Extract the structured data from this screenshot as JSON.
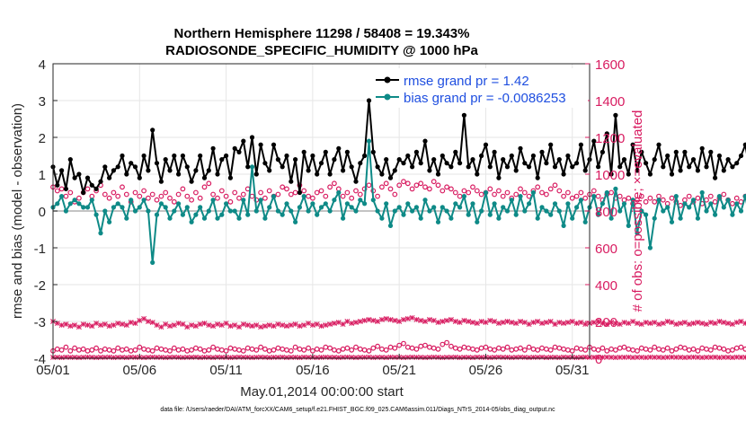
{
  "title_line1": "Northern Hemisphere 11298 / 58408 = 19.343%",
  "title_line2": "RADIOSONDE_SPECIFIC_HUMIDITY @ 1000 hPa",
  "xlabel": "May.01,2014 00:00:00 start",
  "ylabel_left": "rmse and bias (model - observation)",
  "ylabel_right": "# of obs: o=possible; ×=evaluated",
  "footer": "data file: /Users/raeder/DAI/ATM_forcXX/CAM6_setup/f.e21.FHIST_BGC.f09_025.CAM6assim.011/Diags_NTrS_2014-05/obs_diag_output.nc",
  "colors": {
    "rmse": "#000000",
    "bias": "#0e8a87",
    "count": "#d81b60",
    "legend_text": "#1f4fe0",
    "grid": "#e6e6e6",
    "zero_line": "#b0b0b0"
  },
  "chart_data": {
    "type": "line",
    "x_start_day": 1,
    "x_step_days": 0.25,
    "xticks": [
      {
        "day": 1,
        "label": "05/01"
      },
      {
        "day": 6,
        "label": "05/06"
      },
      {
        "day": 11,
        "label": "05/11"
      },
      {
        "day": 16,
        "label": "05/16"
      },
      {
        "day": 21,
        "label": "05/21"
      },
      {
        "day": 26,
        "label": "05/26"
      },
      {
        "day": 31,
        "label": "05/31"
      }
    ],
    "xlim": [
      1,
      32
    ],
    "ylim_left": [
      -4,
      4
    ],
    "yticks_left": [
      -4,
      -3,
      -2,
      -1,
      0,
      1,
      2,
      3,
      4
    ],
    "ylim_right": [
      0,
      1600
    ],
    "yticks_right": [
      0,
      200,
      400,
      600,
      800,
      1000,
      1200,
      1400,
      1600
    ],
    "legend": {
      "placement": "top-right",
      "entries": [
        {
          "label": "rmse grand pr = 1.42",
          "series": "rmse"
        },
        {
          "label": "bias grand pr = -0.0086253",
          "series": "bias"
        }
      ]
    },
    "series": [
      {
        "name": "rmse",
        "axis": "left",
        "values": [
          1.2,
          0.7,
          1.1,
          0.6,
          1.4,
          0.9,
          1.0,
          0.5,
          0.9,
          0.7,
          0.6,
          0.8,
          1.2,
          0.9,
          1.1,
          1.2,
          1.5,
          1.0,
          1.3,
          1.2,
          0.9,
          1.5,
          1.1,
          2.2,
          1.3,
          0.8,
          1.4,
          1.1,
          1.5,
          1.0,
          1.5,
          1.2,
          0.8,
          1.1,
          1.5,
          0.9,
          1.1,
          1.7,
          1.0,
          1.4,
          1.5,
          0.9,
          1.7,
          1.6,
          1.9,
          1.2,
          2.0,
          1.0,
          1.8,
          1.3,
          1.1,
          1.8,
          1.4,
          1.2,
          1.5,
          0.8,
          1.4,
          0.5,
          1.6,
          1.1,
          1.5,
          1.0,
          1.3,
          1.6,
          1.0,
          1.4,
          1.7,
          1.1,
          1.6,
          1.2,
          0.8,
          1.3,
          1.5,
          3.0,
          1.6,
          1.2,
          1.0,
          1.4,
          0.9,
          1.1,
          1.4,
          1.3,
          1.5,
          1.2,
          1.6,
          1.3,
          1.9,
          1.1,
          1.4,
          1.0,
          1.5,
          1.3,
          1.2,
          1.6,
          1.3,
          2.6,
          1.2,
          1.4,
          1.0,
          1.5,
          1.8,
          1.2,
          1.6,
          0.9,
          1.4,
          1.2,
          1.5,
          1.1,
          1.7,
          1.3,
          1.2,
          1.5,
          0.9,
          1.6,
          1.3,
          1.8,
          1.2,
          1.4,
          1.0,
          1.5,
          1.2,
          1.3,
          1.8,
          1.1,
          1.4,
          1.9,
          1.2,
          1.6,
          2.1,
          1.0,
          2.6,
          1.2,
          1.4,
          1.0,
          1.8,
          1.1,
          1.6,
          1.3,
          1.0,
          1.4,
          1.8,
          1.2,
          1.5,
          1.0,
          1.6,
          1.1,
          1.6,
          1.2,
          1.4,
          1.1,
          1.7,
          1.2,
          1.6,
          0.9,
          1.5,
          1.1,
          1.4,
          1.2,
          1.3,
          1.5,
          1.8,
          1.1,
          1.6,
          1.2,
          1.5,
          1.0,
          1.4,
          1.2,
          1.7,
          1.3,
          1.0,
          1.4,
          0.9,
          1.2,
          1.1,
          0.8,
          1.3,
          1.0,
          1.5,
          1.2,
          1.0,
          1.4
        ]
      },
      {
        "name": "bias",
        "axis": "left",
        "values": [
          0.1,
          0.2,
          0.4,
          0.0,
          0.2,
          0.3,
          0.2,
          0.1,
          0.1,
          0.3,
          -0.1,
          -0.6,
          0.0,
          -0.3,
          0.1,
          0.2,
          0.1,
          -0.2,
          0.3,
          0.0,
          0.1,
          0.3,
          0.0,
          -1.4,
          -0.1,
          0.2,
          0.1,
          -0.2,
          0.0,
          0.2,
          -0.1,
          0.1,
          -0.3,
          -0.1,
          0.1,
          -0.2,
          0.0,
          0.3,
          -0.2,
          -0.1,
          0.2,
          0.0,
          0.0,
          -0.2,
          0.3,
          -0.1,
          1.2,
          0.0,
          0.3,
          -0.2,
          0.1,
          0.4,
          0.0,
          -0.1,
          0.2,
          0.0,
          -0.3,
          0.1,
          0.4,
          0.0,
          0.2,
          -0.1,
          0.1,
          0.2,
          0.0,
          0.3,
          0.5,
          -0.2,
          0.2,
          0.1,
          0.0,
          0.3,
          0.2,
          1.9,
          0.3,
          0.0,
          -0.2,
          0.2,
          -0.4,
          0.0,
          0.1,
          -0.1,
          0.2,
          0.0,
          0.1,
          -0.2,
          0.3,
          0.0,
          0.1,
          -0.3,
          0.1,
          0.0,
          -0.2,
          0.2,
          0.1,
          0.4,
          -0.1,
          0.2,
          -0.3,
          0.0,
          0.5,
          -0.1,
          0.2,
          -0.2,
          0.1,
          0.0,
          0.3,
          -0.1,
          0.4,
          0.0,
          0.2,
          0.5,
          -0.2,
          0.1,
          0.0,
          -0.1,
          0.2,
          0.0,
          -0.4,
          0.2,
          -0.2,
          0.1,
          0.3,
          -0.3,
          0.1,
          0.4,
          -0.1,
          0.2,
          0.5,
          -0.2,
          0.6,
          0.0,
          0.2,
          -0.4,
          0.3,
          -0.6,
          0.0,
          -0.1,
          -1.0,
          -0.2,
          0.3,
          0.0,
          0.1,
          -0.3,
          0.4,
          -0.2,
          0.2,
          0.1,
          0.3,
          -0.2,
          0.5,
          0.0,
          0.2,
          -0.1,
          0.4,
          0.1,
          0.3,
          -0.1,
          0.2,
          0.0,
          0.4,
          -0.2,
          0.1,
          0.5,
          -0.1,
          0.2,
          0.0,
          0.3,
          -0.2,
          0.4,
          -0.1,
          0.2,
          0.0,
          0.4,
          -0.1,
          0.3,
          -0.3,
          0.2,
          -0.5,
          0.0,
          -0.3,
          0.1,
          -0.2,
          -0.4,
          0.0,
          -0.3
        ]
      },
      {
        "name": "possible",
        "axis": "right",
        "marker": "o",
        "values": [
          930,
          910,
          920,
          880,
          900,
          850,
          870,
          900,
          920,
          880,
          910,
          940,
          890,
          870,
          900,
          880,
          930,
          890,
          850,
          900,
          880,
          910,
          870,
          890,
          860,
          880,
          900,
          870,
          850,
          890,
          920,
          880,
          860,
          900,
          870,
          930,
          950,
          890,
          870,
          910,
          880,
          850,
          900,
          870,
          890,
          920,
          880,
          860,
          900,
          870,
          910,
          880,
          890,
          930,
          920,
          890,
          900,
          940,
          910,
          880,
          870,
          900,
          910,
          880,
          930,
          950,
          920,
          880,
          900,
          870,
          910,
          890,
          920,
          940,
          910,
          880,
          930,
          950,
          920,
          890,
          940,
          960,
          950,
          920,
          940,
          950,
          930,
          920,
          960,
          940,
          910,
          930,
          920,
          900,
          880,
          910,
          900,
          930,
          910,
          890,
          900,
          920,
          890,
          910,
          880,
          900,
          870,
          890,
          920,
          900,
          880,
          910,
          930,
          900,
          890,
          920,
          940,
          910,
          880,
          900,
          870,
          880,
          900,
          870,
          890,
          910,
          880,
          860,
          890,
          900,
          870,
          880,
          860,
          870,
          840,
          860,
          880,
          850,
          870,
          850,
          880,
          860,
          840,
          870,
          850,
          830,
          860,
          880,
          850,
          870,
          840,
          860,
          880,
          850,
          870,
          890,
          860,
          840,
          870,
          850,
          880,
          860,
          890,
          850,
          870,
          860,
          880,
          900,
          870,
          850,
          880,
          860,
          840,
          870,
          890,
          860,
          880,
          850,
          870,
          890
        ]
      },
      {
        "name": "evaluated",
        "axis": "right",
        "marker": "x",
        "values": [
          200,
          190,
          180,
          185,
          175,
          180,
          170,
          185,
          180,
          175,
          190,
          180,
          185,
          175,
          180,
          190,
          185,
          180,
          195,
          190,
          205,
          215,
          200,
          195,
          180,
          170,
          185,
          175,
          180,
          190,
          185,
          170,
          180,
          175,
          185,
          190,
          180,
          175,
          185,
          180,
          190,
          175,
          180,
          170,
          185,
          180,
          175,
          180,
          170,
          175,
          180,
          175,
          185,
          180,
          175,
          180,
          185,
          175,
          180,
          190,
          180,
          185,
          175,
          180,
          185,
          190,
          195,
          185,
          200,
          190,
          195,
          200,
          205,
          210,
          205,
          200,
          210,
          215,
          210,
          205,
          200,
          210,
          215,
          220,
          210,
          205,
          200,
          210,
          205,
          195,
          200,
          205,
          210,
          200,
          195,
          205,
          200,
          195,
          190,
          200,
          195,
          205,
          200,
          190,
          195,
          200,
          195,
          190,
          200,
          195,
          185,
          195,
          200,
          190,
          195,
          200,
          185,
          195,
          190,
          195,
          200,
          190,
          195,
          185,
          190,
          195,
          200,
          190,
          185,
          195,
          190,
          185,
          195,
          190,
          200,
          190,
          185,
          195,
          190,
          195,
          185,
          190,
          200,
          195,
          185,
          190,
          195,
          185,
          190,
          195,
          190,
          185,
          195,
          190,
          200,
          195,
          190,
          185,
          195,
          200,
          190,
          195,
          210,
          205,
          200,
          210,
          215,
          205,
          210,
          200,
          205,
          190,
          195,
          200,
          195,
          185,
          190,
          195,
          185,
          190
        ]
      },
      {
        "name": "possible_low",
        "axis": "right",
        "marker": "o",
        "values": [
          40,
          50,
          45,
          60,
          40,
          55,
          45,
          50,
          40,
          45,
          55,
          40,
          50,
          45,
          40,
          55,
          45,
          50,
          40,
          45,
          60,
          50,
          45,
          40,
          55,
          50,
          45,
          40,
          55,
          45,
          50,
          40,
          45,
          55,
          50,
          40,
          45,
          60,
          50,
          45,
          40,
          55,
          50,
          45,
          40,
          55,
          50,
          45,
          60,
          50,
          40,
          45,
          55,
          50,
          45,
          40,
          60,
          50,
          45,
          55,
          40,
          50,
          45,
          60,
          55,
          45,
          40,
          50,
          55,
          45,
          60,
          50,
          45,
          40,
          55,
          65,
          50,
          45,
          60,
          55,
          70,
          80,
          60,
          55,
          50,
          65,
          70,
          60,
          55,
          50,
          75,
          85,
          65,
          55,
          50,
          60,
          55,
          50,
          45,
          55,
          60,
          50,
          45,
          55,
          50,
          60,
          45,
          50,
          55,
          45,
          60,
          50,
          45,
          55,
          50,
          45,
          60,
          55,
          50,
          45,
          40,
          55,
          50,
          45,
          60,
          50,
          45,
          55,
          40,
          50,
          45,
          55,
          60,
          50,
          45,
          40,
          55,
          50,
          45,
          60,
          50,
          45,
          55,
          40,
          50,
          60,
          55,
          45,
          50,
          40,
          55,
          50,
          45,
          60,
          55,
          50,
          40,
          45,
          55,
          60,
          50,
          45,
          40,
          55,
          50,
          60,
          45,
          50,
          55,
          45,
          40,
          50,
          55,
          60,
          45,
          50,
          40,
          55,
          50,
          45
        ]
      },
      {
        "name": "evaluated_low",
        "axis": "right",
        "marker": "x",
        "values": [
          5,
          5,
          4,
          6,
          5,
          5,
          4,
          5,
          6,
          5,
          4,
          5,
          5,
          6,
          4,
          5,
          5,
          4,
          6,
          5,
          5,
          4,
          5,
          6,
          5,
          5,
          4,
          5,
          6,
          5,
          4,
          5,
          5,
          6,
          4,
          5,
          5,
          4,
          6,
          5,
          5,
          4,
          5,
          6,
          5,
          5,
          4,
          5,
          6,
          5,
          4,
          5,
          5,
          6,
          4,
          5,
          5,
          4,
          6,
          5,
          5,
          4,
          5,
          6,
          5,
          5,
          4,
          5,
          6,
          5,
          4,
          5,
          5,
          6,
          4,
          5,
          5,
          4,
          6,
          5,
          5,
          4,
          5,
          6,
          5,
          5,
          4,
          5,
          6,
          5,
          4,
          5,
          5,
          6,
          4,
          5,
          5,
          4,
          6,
          5,
          5,
          4,
          5,
          6,
          5,
          5,
          4,
          5,
          6,
          5,
          4,
          5,
          5,
          6,
          4,
          5,
          5,
          4,
          6,
          5,
          5,
          4,
          5,
          6,
          5,
          5,
          4,
          5,
          6,
          5,
          4,
          5,
          5,
          6,
          4,
          5,
          5,
          4,
          6,
          5,
          5,
          4,
          5,
          6,
          5,
          5,
          4,
          5,
          6,
          5,
          4,
          5,
          5,
          6,
          4,
          5,
          5,
          4,
          6,
          5,
          5,
          4,
          5,
          6,
          5,
          5,
          4,
          5,
          6,
          5,
          4,
          5,
          5,
          6,
          4,
          5,
          5,
          4,
          6,
          5
        ]
      }
    ]
  }
}
